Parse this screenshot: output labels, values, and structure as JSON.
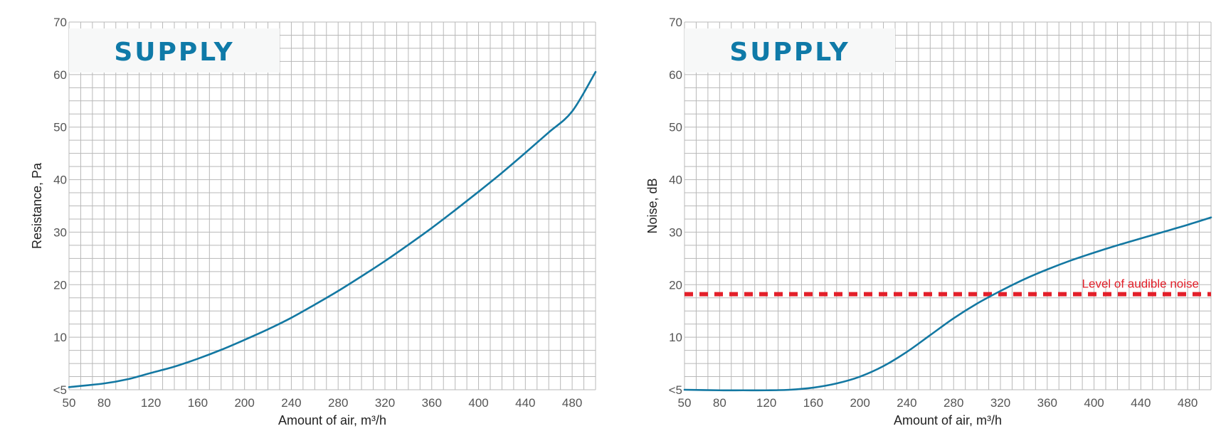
{
  "theme": {
    "curve_color": "#1378a2",
    "grid_color": "#b8b8b8",
    "reference_color": "#e3202a",
    "badge_text_color": "#0f7aa8",
    "badge_bg": "#f7f8f8"
  },
  "chart_data": [
    {
      "type": "line",
      "title": "SUPPLY",
      "xlabel": "Amount of air, m³/h",
      "ylabel": "Resistance, Pa",
      "xlim": [
        50,
        500
      ],
      "ylim": [
        0,
        70
      ],
      "x_ticks": [
        50,
        80,
        120,
        160,
        200,
        240,
        280,
        320,
        360,
        400,
        440,
        480
      ],
      "y_ticks": [
        {
          "value": 0,
          "label": "<5"
        },
        {
          "value": 10,
          "label": "10"
        },
        {
          "value": 20,
          "label": "20"
        },
        {
          "value": 30,
          "label": "30"
        },
        {
          "value": 40,
          "label": "40"
        },
        {
          "value": 50,
          "label": "50"
        },
        {
          "value": 60,
          "label": "60"
        },
        {
          "value": 70,
          "label": "70"
        }
      ],
      "grid": true,
      "series": [
        {
          "x": [
            50,
            80,
            100,
            120,
            140,
            160,
            180,
            200,
            220,
            240,
            260,
            280,
            300,
            320,
            340,
            360,
            380,
            400,
            420,
            440,
            460,
            480,
            500
          ],
          "y": [
            0.5,
            1.2,
            2.0,
            3.2,
            4.4,
            5.9,
            7.6,
            9.5,
            11.5,
            13.7,
            16.2,
            18.8,
            21.6,
            24.5,
            27.6,
            30.8,
            34.2,
            37.7,
            41.3,
            45.1,
            49.0,
            53.0,
            60.5
          ]
        }
      ]
    },
    {
      "type": "line",
      "title": "SUPPLY",
      "xlabel": "Amount of air, m³/h",
      "ylabel": "Noise, dB",
      "xlim": [
        50,
        500
      ],
      "ylim": [
        0,
        70
      ],
      "x_ticks": [
        50,
        80,
        120,
        160,
        200,
        240,
        280,
        320,
        360,
        400,
        440,
        480
      ],
      "y_ticks": [
        {
          "value": 0,
          "label": "<5"
        },
        {
          "value": 10,
          "label": "10"
        },
        {
          "value": 20,
          "label": "20"
        },
        {
          "value": 30,
          "label": "30"
        },
        {
          "value": 40,
          "label": "40"
        },
        {
          "value": 50,
          "label": "50"
        },
        {
          "value": 60,
          "label": "60"
        },
        {
          "value": 70,
          "label": "70"
        }
      ],
      "grid": true,
      "series": [
        {
          "x": [
            50,
            80,
            100,
            120,
            140,
            160,
            180,
            200,
            220,
            240,
            260,
            280,
            300,
            320,
            340,
            360,
            380,
            400,
            420,
            440,
            460,
            480,
            500
          ],
          "y": [
            0.0,
            -0.1,
            -0.1,
            -0.1,
            0.0,
            0.4,
            1.2,
            2.5,
            4.5,
            7.2,
            10.4,
            13.6,
            16.4,
            18.8,
            21.0,
            22.9,
            24.6,
            26.1,
            27.5,
            28.8,
            30.1,
            31.4,
            32.8
          ]
        }
      ],
      "reference_line": {
        "y": 18.2,
        "label": "Level of audible noise",
        "style": "dashed"
      }
    }
  ]
}
